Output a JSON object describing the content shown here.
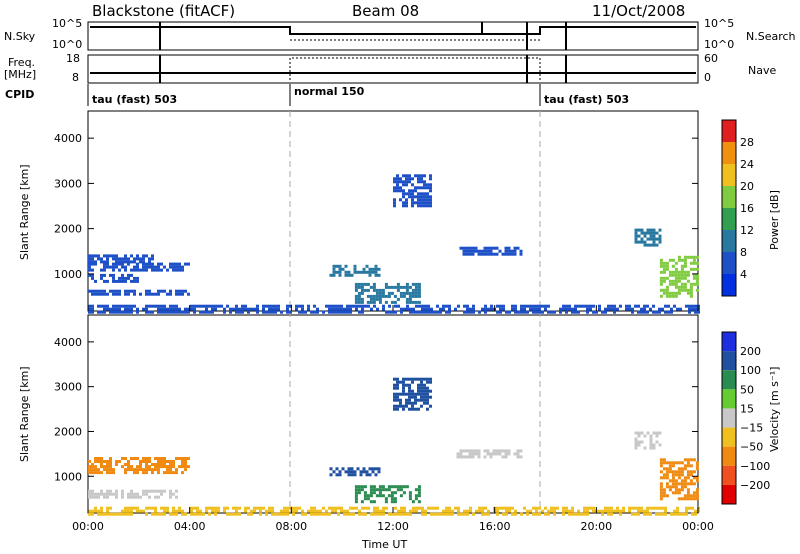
{
  "header": {
    "station": "Blackstone (fitACF)",
    "beam": "Beam 08",
    "date": "11/Oct/2008"
  },
  "panels": {
    "nsky": {
      "label": "N.Sky",
      "ticks": [
        "10^5",
        "10^0"
      ]
    },
    "nsearch": {
      "label": "N.Search",
      "ticks": [
        "10^5",
        "10^0"
      ]
    },
    "freq": {
      "label": "Freq.",
      "unit": "[MHz]",
      "ticks": [
        "18",
        "8"
      ]
    },
    "nave": {
      "label": "Nave",
      "ticks": [
        "60",
        "0"
      ]
    },
    "cpid": {
      "label": "CPID",
      "modes": [
        {
          "name": "tau (fast) 503",
          "start_h": 0
        },
        {
          "name": "normal 150",
          "start_h": 8
        },
        {
          "name": "tau (fast) 503",
          "start_h": 18
        }
      ]
    }
  },
  "colors": {
    "power": [
      "#0030e0",
      "#1e50c8",
      "#2878a0",
      "#30a050",
      "#80cc40",
      "#f0c020",
      "#f09010",
      "#e02020"
    ],
    "velocity": [
      "#1e2fe0",
      "#2050a0",
      "#2a8c50",
      "#66cc33",
      "#c8c8c8",
      "#f0c020",
      "#f08a10",
      "#f05020",
      "#e00000"
    ]
  },
  "chart_data": [
    {
      "type": "heatmap",
      "name": "power",
      "ylabel": "Slant Range [km]",
      "x_range_h": [
        0,
        24
      ],
      "ylim_km": [
        180,
        4600
      ],
      "y_ticks": [
        1000,
        2000,
        3000,
        4000
      ],
      "colorbar": {
        "label": "Power [dB]",
        "ticks": [
          "4",
          "8",
          "12",
          "16",
          "20",
          "24",
          "28"
        ],
        "range": [
          0,
          32
        ]
      },
      "regions": [
        {
          "t": [
            0.0,
            2.5
          ],
          "r": [
            1250,
            1430
          ],
          "v": 6
        },
        {
          "t": [
            0.0,
            4.0
          ],
          "r": [
            1080,
            1250
          ],
          "v": 5
        },
        {
          "t": [
            0.0,
            2.0
          ],
          "r": [
            850,
            1000
          ],
          "v": 7
        },
        {
          "t": [
            0.0,
            4.0
          ],
          "r": [
            550,
            650
          ],
          "v": 5
        },
        {
          "t": [
            0.0,
            24.0
          ],
          "r": [
            180,
            320
          ],
          "v": 6
        },
        {
          "t": [
            9.5,
            11.5
          ],
          "r": [
            1000,
            1200
          ],
          "v": 9
        },
        {
          "t": [
            10.5,
            13.0
          ],
          "r": [
            400,
            800
          ],
          "v": 10
        },
        {
          "t": [
            12.0,
            13.5
          ],
          "r": [
            2500,
            3200
          ],
          "v": 5
        },
        {
          "t": [
            14.5,
            17.0
          ],
          "r": [
            1450,
            1600
          ],
          "v": 6
        },
        {
          "t": [
            21.5,
            22.5
          ],
          "r": [
            1650,
            2000
          ],
          "v": 11
        },
        {
          "t": [
            22.5,
            24.0
          ],
          "r": [
            500,
            1400
          ],
          "v": 16
        }
      ]
    },
    {
      "type": "heatmap",
      "name": "velocity",
      "xlabel": "Time UT",
      "ylabel": "Slant Range [km]",
      "x_range_h": [
        0,
        24
      ],
      "ylim_km": [
        180,
        4600
      ],
      "y_ticks": [
        1000,
        2000,
        3000,
        4000
      ],
      "x_ticks": [
        "00:00",
        "04:00",
        "08:00",
        "12:00",
        "16:00",
        "20:00",
        "00:00"
      ],
      "colorbar": {
        "label": "Velocity [m s⁻¹]",
        "ticks": [
          "200",
          "100",
          "50",
          "15",
          "−15",
          "−50",
          "−100",
          "−200"
        ]
      },
      "regions": [
        {
          "t": [
            0.0,
            4.0
          ],
          "r": [
            1250,
            1430
          ],
          "v": -40
        },
        {
          "t": [
            0.0,
            4.0
          ],
          "r": [
            1080,
            1250
          ],
          "v": -30
        },
        {
          "t": [
            0.0,
            3.5
          ],
          "r": [
            500,
            700
          ],
          "v": -10
        },
        {
          "t": [
            0.0,
            24.0
          ],
          "r": [
            180,
            320
          ],
          "v": -20
        },
        {
          "t": [
            9.5,
            11.5
          ],
          "r": [
            1000,
            1200
          ],
          "v": 80
        },
        {
          "t": [
            10.5,
            13.0
          ],
          "r": [
            400,
            800
          ],
          "v": 40
        },
        {
          "t": [
            12.0,
            13.5
          ],
          "r": [
            2500,
            3200
          ],
          "v": 150
        },
        {
          "t": [
            14.5,
            17.0
          ],
          "r": [
            1450,
            1600
          ],
          "v": -5
        },
        {
          "t": [
            21.5,
            22.5
          ],
          "r": [
            1650,
            2000
          ],
          "v": 0
        },
        {
          "t": [
            22.5,
            24.0
          ],
          "r": [
            500,
            1400
          ],
          "v": -60
        }
      ]
    }
  ]
}
